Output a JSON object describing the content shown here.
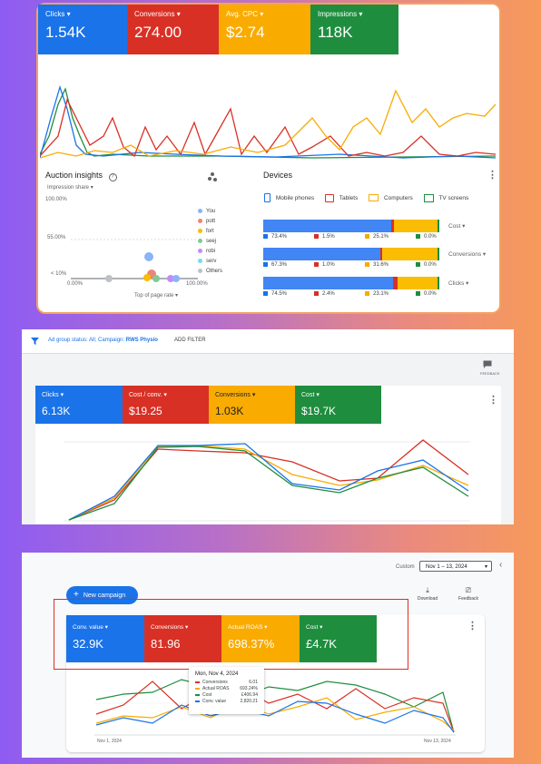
{
  "panel1": {
    "tiles": [
      {
        "label": "Clicks",
        "value": "1.54K",
        "color": "#1a73e8"
      },
      {
        "label": "Conversions",
        "value": "274.00",
        "color": "#d93025"
      },
      {
        "label": "Avg. CPC",
        "value": "$2.74",
        "color": "#f9ab00"
      },
      {
        "label": "Impressions",
        "value": "118K",
        "color": "#1e8e3e"
      }
    ],
    "auction": {
      "title": "Auction insights",
      "dropdown": "Impression share",
      "y_labels": [
        "100.00%",
        "55.00%",
        "< 10%"
      ],
      "x_labels": [
        "0.00%",
        "100.00%"
      ],
      "x_dropdown": "Top of page rate",
      "legend": [
        "You",
        "pott",
        "fort",
        "seej",
        "robi",
        "serv",
        "Others"
      ]
    },
    "devices": {
      "title": "Devices",
      "legend": [
        "Mobile phones",
        "Tablets",
        "Computers",
        "TV screens"
      ],
      "rows": [
        {
          "label": "Cost",
          "values": [
            "73.4%",
            "1.5%",
            "25.1%",
            "0.0%"
          ],
          "shares": [
            73.4,
            1.5,
            25.1,
            0.0
          ]
        },
        {
          "label": "Conversions",
          "values": [
            "67.3%",
            "1.0%",
            "31.6%",
            "0.0%"
          ],
          "shares": [
            67.3,
            1.0,
            31.6,
            0.0
          ]
        },
        {
          "label": "Clicks",
          "values": [
            "74.5%",
            "2.4%",
            "23.1%",
            "0.0%"
          ],
          "shares": [
            74.5,
            2.4,
            23.1,
            0.0
          ]
        }
      ]
    }
  },
  "panel2": {
    "filter_text_prefix": "Ad group status: All; Campaign: ",
    "filter_campaign": "RWS Physio",
    "add_filter": "ADD FILTER",
    "feedback": "FEEDBACK",
    "tiles": [
      {
        "label": "Clicks",
        "value": "6.13K",
        "color": "#1a73e8"
      },
      {
        "label": "Cost / conv.",
        "value": "$19.25",
        "color": "#d93025"
      },
      {
        "label": "Conversions",
        "value": "1.03K",
        "color": "#f9ab00"
      },
      {
        "label": "Cost",
        "value": "$19.7K",
        "color": "#1e8e3e"
      }
    ]
  },
  "panel3": {
    "date_label": "Custom",
    "date_range": "Nov 1 – 13, 2024",
    "new_campaign": "New campaign",
    "download": "Download",
    "feedback": "Feedback",
    "tiles": [
      {
        "label": "Conv. value",
        "value": "32.9K",
        "color": "#1a73e8"
      },
      {
        "label": "Conversions",
        "value": "81.96",
        "color": "#d93025"
      },
      {
        "label": "Actual ROAS",
        "value": "698.37%",
        "color": "#f9ab00"
      },
      {
        "label": "Cost",
        "value": "£4.7K",
        "color": "#1e8e3e"
      }
    ],
    "tooltip": {
      "title": "Mon, Nov 4, 2024",
      "rows": [
        {
          "name": "Conversions",
          "value": "6.01",
          "color": "#d93025"
        },
        {
          "name": "Actual ROAS",
          "value": "693.24%",
          "color": "#f9ab00"
        },
        {
          "name": "Cost",
          "value": "£406.94",
          "color": "#1e8e3e"
        },
        {
          "name": "Conv. value",
          "value": "2,820.21",
          "color": "#1a73e8"
        }
      ]
    },
    "x_start": "Nov 1, 2024",
    "x_end": "Nov 13, 2024"
  }
}
